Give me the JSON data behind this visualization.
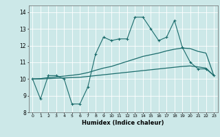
{
  "title": "",
  "xlabel": "Humidex (Indice chaleur)",
  "xlim": [
    -0.5,
    23.5
  ],
  "ylim": [
    8,
    14.4
  ],
  "yticks": [
    8,
    9,
    10,
    11,
    12,
    13,
    14
  ],
  "xticks": [
    0,
    1,
    2,
    3,
    4,
    5,
    6,
    7,
    8,
    9,
    10,
    11,
    12,
    13,
    14,
    15,
    16,
    17,
    18,
    19,
    20,
    21,
    22,
    23
  ],
  "bg_color": "#cce8e8",
  "line_color": "#1a6b6b",
  "grid_color": "#ffffff",
  "line1_x": [
    0,
    1,
    2,
    3,
    4,
    5,
    6,
    7,
    8,
    9,
    10,
    11,
    12,
    13,
    14,
    15,
    16,
    17,
    18,
    19,
    20,
    21,
    22,
    23
  ],
  "line1_y": [
    10.0,
    8.8,
    10.2,
    10.2,
    10.0,
    8.5,
    8.5,
    9.5,
    11.5,
    12.5,
    12.3,
    12.4,
    12.4,
    13.7,
    13.7,
    13.0,
    12.3,
    12.5,
    13.5,
    11.9,
    11.0,
    10.6,
    10.6,
    10.2
  ],
  "line2_x": [
    0,
    1,
    2,
    3,
    4,
    5,
    6,
    7,
    8,
    9,
    10,
    11,
    12,
    13,
    14,
    15,
    16,
    17,
    18,
    19,
    20,
    21,
    22,
    23
  ],
  "line2_y": [
    10.0,
    10.02,
    10.08,
    10.12,
    10.17,
    10.22,
    10.28,
    10.38,
    10.52,
    10.65,
    10.75,
    10.9,
    11.05,
    11.2,
    11.35,
    11.45,
    11.55,
    11.68,
    11.78,
    11.85,
    11.82,
    11.65,
    11.55,
    10.2
  ],
  "line3_x": [
    0,
    1,
    2,
    3,
    4,
    5,
    6,
    7,
    8,
    9,
    10,
    11,
    12,
    13,
    14,
    15,
    16,
    17,
    18,
    19,
    20,
    21,
    22,
    23
  ],
  "line3_y": [
    10.0,
    10.0,
    10.02,
    10.04,
    10.06,
    10.08,
    10.1,
    10.15,
    10.2,
    10.25,
    10.3,
    10.35,
    10.4,
    10.45,
    10.5,
    10.55,
    10.6,
    10.65,
    10.7,
    10.75,
    10.78,
    10.72,
    10.65,
    10.2
  ]
}
